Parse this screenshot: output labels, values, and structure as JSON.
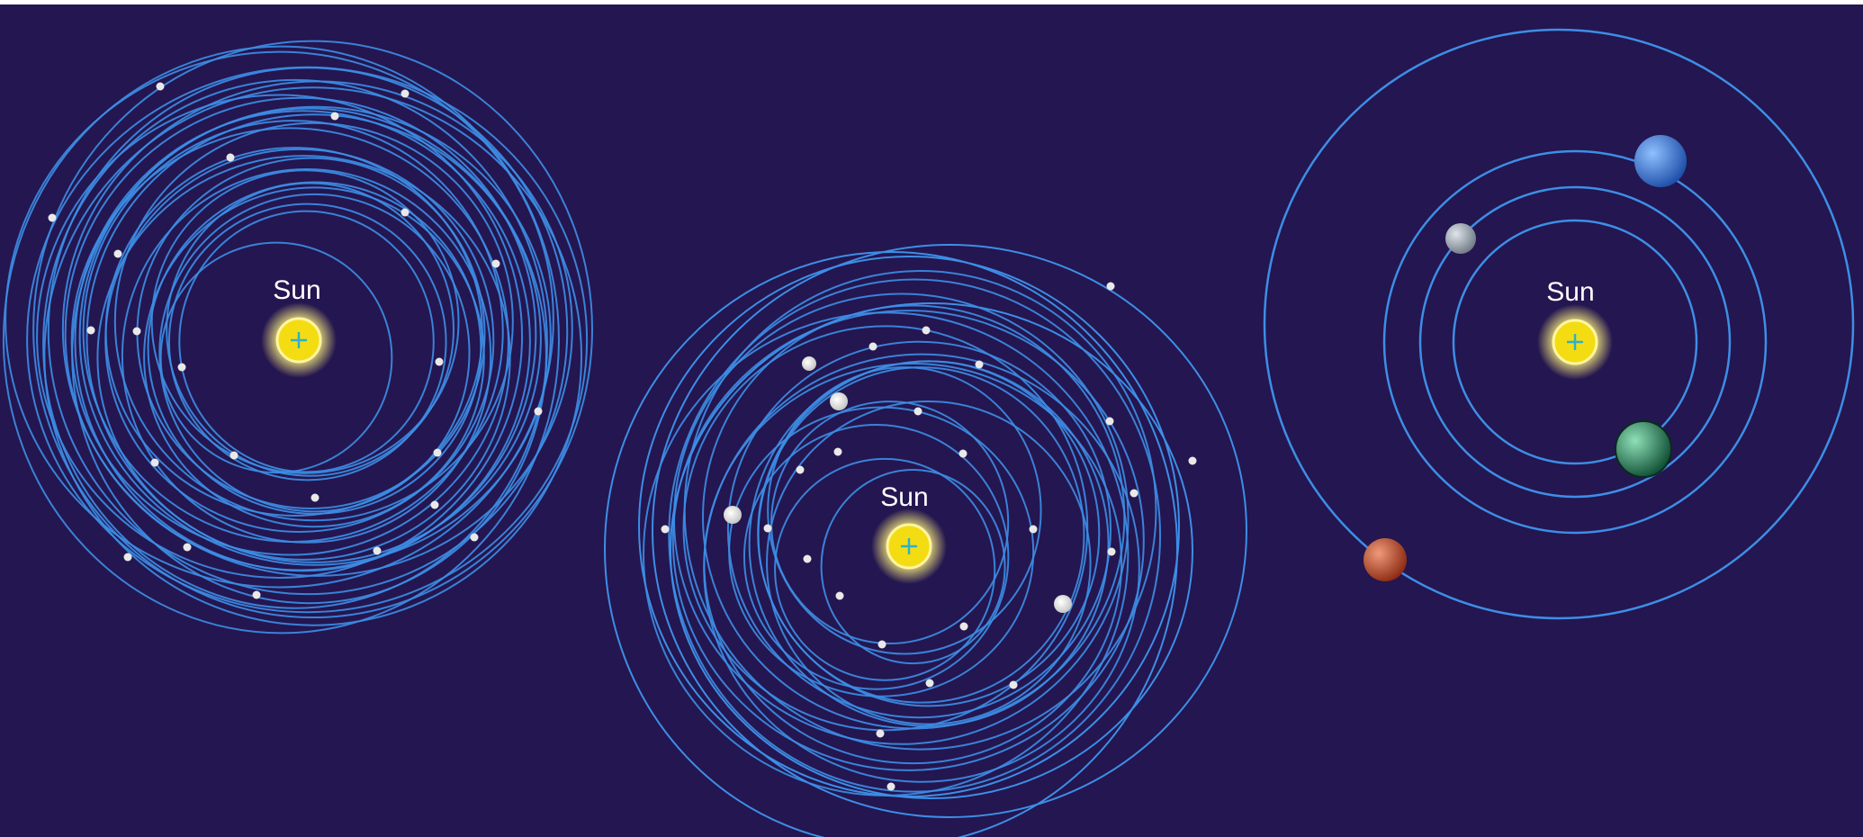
{
  "panels": [
    {
      "id": "planetesimal-swarm",
      "sun_label": "Sun"
    },
    {
      "id": "protoplanet-collisions",
      "sun_label": "Sun"
    },
    {
      "id": "final-planetary-system",
      "sun_label": "Sun"
    }
  ],
  "colors": {
    "background": "#241650",
    "orbit": "#3d8ee6",
    "sun_core": "#f4dc12",
    "sun_glow": "#f8f0a0",
    "sun_cross": "#2fb0c8",
    "planetesimal": "#e9e9e9",
    "planet_grey": "#9aa3ad",
    "planet_blue": "#2f6fd0",
    "planet_green": "#1f7a52",
    "planet_red": "#b8401e"
  },
  "bodies": {
    "panel3_planets": [
      "planet-grey",
      "planet-blue",
      "planet-green",
      "planet-red"
    ]
  }
}
